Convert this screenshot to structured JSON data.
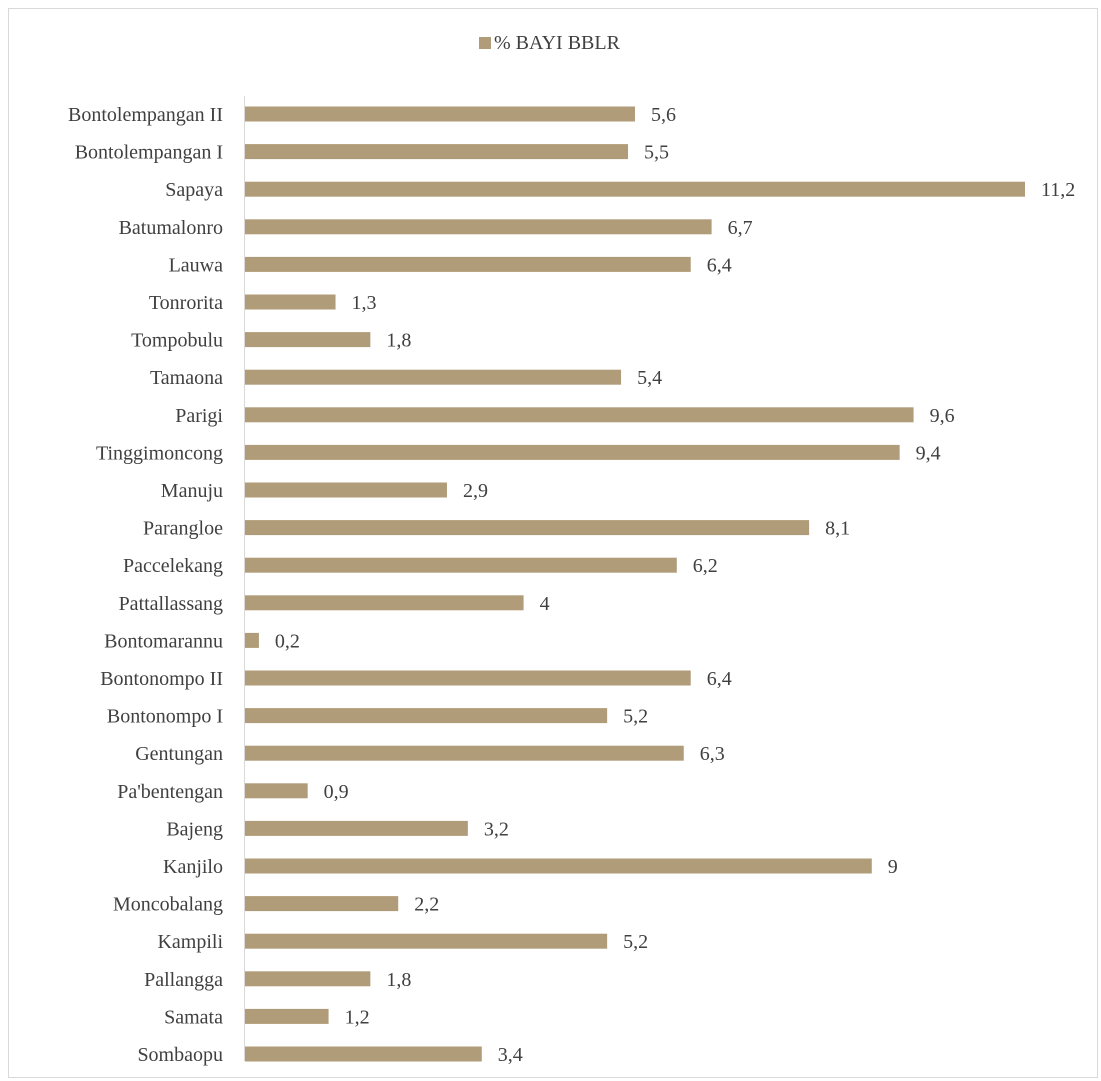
{
  "chart_data": {
    "type": "bar",
    "orientation": "horizontal",
    "title": "",
    "xlabel": "",
    "ylabel": "",
    "xlim": [
      0,
      11.2
    ],
    "grid": false,
    "legend_position": "top",
    "categories": [
      "Bontolempangan II",
      "Bontolempangan I",
      "Sapaya",
      "Batumalonro",
      "Lauwa",
      "Tonrorita",
      "Tompobulu",
      "Tamaona",
      "Parigi",
      "Tinggimoncong",
      "Manuju",
      "Parangloe",
      "Paccelekang",
      "Pattallassang",
      "Bontomarannu",
      "Bontonompo II",
      "Bontonompo I",
      "Gentungan",
      "Pa'bentengan",
      "Bajeng",
      "Kanjilo",
      "Moncobalang",
      "Kampili",
      "Pallangga",
      "Samata",
      "Sombaopu"
    ],
    "series": [
      {
        "name": "% BAYI BBLR",
        "color": "#b09c79",
        "values": [
          5.6,
          5.5,
          11.2,
          6.7,
          6.4,
          1.3,
          1.8,
          5.4,
          9.6,
          9.4,
          2.9,
          8.1,
          6.2,
          4,
          0.2,
          6.4,
          5.2,
          6.3,
          0.9,
          3.2,
          9,
          2.2,
          5.2,
          1.8,
          1.2,
          3.4
        ],
        "labels": [
          "5,6",
          "5,5",
          "11,2",
          "6,7",
          "6,4",
          "1,3",
          "1,8",
          "5,4",
          "9,6",
          "9,4",
          "2,9",
          "8,1",
          "6,2",
          "4",
          "0,2",
          "6,4",
          "5,2",
          "6,3",
          "0,9",
          "3,2",
          "9",
          "2,2",
          "5,2",
          "1,8",
          "1,2",
          "3,4"
        ]
      }
    ]
  }
}
